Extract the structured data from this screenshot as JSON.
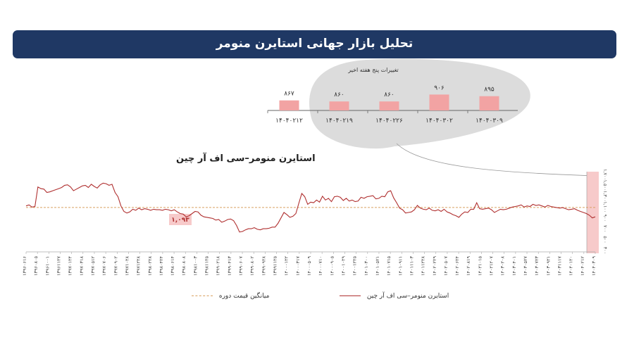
{
  "header": {
    "title": "تحلیل بازار جهانی استایرن منومر"
  },
  "colors": {
    "banner": "#1f3864",
    "line": "#b03030",
    "bar": "#f2a3a3",
    "average": "#d9a060",
    "blob": "#dcdcdc"
  },
  "chart_data": [
    {
      "type": "bar",
      "title": "تغییرات پنج هفته اخیر",
      "categories": [
        "۱۴۰۴۰۲۱۲",
        "۱۴۰۴۰۲۱۹",
        "۱۴۰۴۰۲۲۶",
        "۱۴۰۴۰۳۰۲",
        "۱۴۰۴۰۳۰۹"
      ],
      "values": [
        867,
        860,
        860,
        906,
        895
      ],
      "labels": [
        "۸۶۷",
        "۸۶۰",
        "۸۶۰",
        "۹۰۶",
        "۸۹۵"
      ],
      "ylim": [
        800,
        950
      ]
    },
    {
      "type": "line",
      "title": "استایرن منومر–سی اف آر چین",
      "legend": [
        "استایرن منومر–سی اف آر چین",
        "میانگین قیمت دوره"
      ],
      "average": 1093,
      "average_label": "۱,۰۹۳",
      "ylim": [
        300,
        1700
      ],
      "yticks": [
        "۱,۷۰۰",
        "۱,۵۰۰",
        "۱,۳۰۰",
        "۱,۱۰۰",
        "۹۰۰",
        "۷۰۰",
        "۵۰۰",
        "۳۰۰"
      ],
      "grid": false,
      "x_labels": [
        "۱۳۹۶۰۶۱۶",
        "۱۳۹۶۰۸۰۵",
        "۱۳۹۶۱۰۰۱",
        "۱۳۹۶۱۱۲۷",
        "۱۳۹۷۰۱۲۴",
        "۱۳۹۷۰۳۱۸",
        "۱۳۹۷۰۵۱۲",
        "۱۳۹۷۰۷۰۶",
        "۱۳۹۷۰۹۰۲",
        "۱۳۹۷۱۰۲۸",
        "۱۳۹۷۱۲۲۸",
        "۱۳۹۸۰۲۲۸",
        "۱۳۹۸۰۴۲۴",
        "۱۳۹۸۰۶۱۴",
        "۱۳۹۸۰۸۰۸",
        "۱۳۹۸۱۰۰۳",
        "۱۳۹۸۱۱۲۵",
        "۱۳۹۹۰۲۱۸",
        "۱۳۹۹۰۴۱۳",
        "۱۳۹۹۰۶۰۷",
        "۱۳۹۹۰۸۰۲",
        "۱۳۹۹۰۹۲۸",
        "۱۳۹۹۱۱۲۵",
        "۱۴۰۰۰۱۲۲",
        "۱۴۰۰۰۳۱۷",
        "۱۴۰۰۰۵۰۹",
        "۱۴۰۰۰۷۱۰",
        "۱۴۰۰۰۹۰۵",
        "۱۴۰۰۱۰۲۹",
        "۱۴۰۰۱۲۲۵",
        "۱۴۰۱۰۳۰۰",
        "۱۴۰۱۰۵۲۱",
        "۱۴۰۱۰۷۱۵",
        "۱۴۰۱۰۹۱۱",
        "۱۴۰۱۱۱۰۳",
        "۱۴۰۱۱۲۲۸",
        "۱۴۰۲۰۲۲۹",
        "۱۴۰۲۰۵۰۷",
        "۱۴۰۲۰۶۲۴",
        "۱۴۰۲۰۸۱۹",
        "۱۴۰۲۱۰۱۵",
        "۱۴۰۲۱۲۰۷",
        "۱۴۰۳۰۲۰۸",
        "۱۴۰۳۰۴۰۱",
        "۱۴۰۳۰۵۲۷",
        "۱۴۰۳۰۷۲۳",
        "۱۴۰۳۰۹۲۱",
        "۱۴۰۳۱۱۱۷",
        "۱۴۰۴۰۱۲۰",
        "۱۴۰۴۰۲۱۲",
        "۱۴۰۴۰۳۰۹"
      ],
      "series": [
        {
          "values": [
            1120,
            1140,
            1100,
            1110,
            1470,
            1440,
            1430,
            1370,
            1380,
            1400,
            1420,
            1440,
            1460,
            1500,
            1510,
            1470,
            1400,
            1430,
            1460,
            1490,
            1500,
            1460,
            1520,
            1480,
            1450,
            1510,
            1540,
            1530,
            1500,
            1520,
            1370,
            1290,
            1120,
            1020,
            990,
            1010,
            1060,
            1040,
            1080,
            1050,
            1070,
            1060,
            1040,
            1060,
            1050,
            1050,
            1040,
            1060,
            1050,
            1030,
            1050,
            1010,
            980,
            970,
            920,
            940,
            980,
            1020,
            1010,
            950,
            920,
            910,
            900,
            890,
            860,
            870,
            820,
            840,
            870,
            880,
            850,
            760,
            640,
            650,
            680,
            700,
            700,
            720,
            690,
            680,
            700,
            700,
            710,
            730,
            730,
            800,
            900,
            1000,
            960,
            910,
            930,
            980,
            1170,
            1350,
            1290,
            1150,
            1190,
            1180,
            1230,
            1190,
            1300,
            1230,
            1260,
            1200,
            1290,
            1300,
            1280,
            1220,
            1260,
            1210,
            1230,
            1200,
            1210,
            1280,
            1260,
            1290,
            1300,
            1310,
            1250,
            1260,
            1300,
            1290,
            1380,
            1400,
            1270,
            1180,
            1080,
            1050,
            990,
            1000,
            1010,
            1050,
            1130,
            1080,
            1060,
            1050,
            1080,
            1040,
            1030,
            1050,
            1020,
            1060,
            1010,
            990,
            960,
            940,
            910,
            970,
            1010,
            1000,
            1060,
            1060,
            1180,
            1070,
            1060,
            1070,
            1080,
            1050,
            1000,
            1030,
            1060,
            1050,
            1060,
            1080,
            1100,
            1110,
            1120,
            1140,
            1100,
            1120,
            1110,
            1150,
            1130,
            1140,
            1120,
            1100,
            1130,
            1110,
            1100,
            1090,
            1080,
            1090,
            1070,
            1050,
            1060,
            1070,
            1040,
            1020,
            1000,
            980,
            950,
            900,
            920
          ]
        }
      ]
    }
  ]
}
